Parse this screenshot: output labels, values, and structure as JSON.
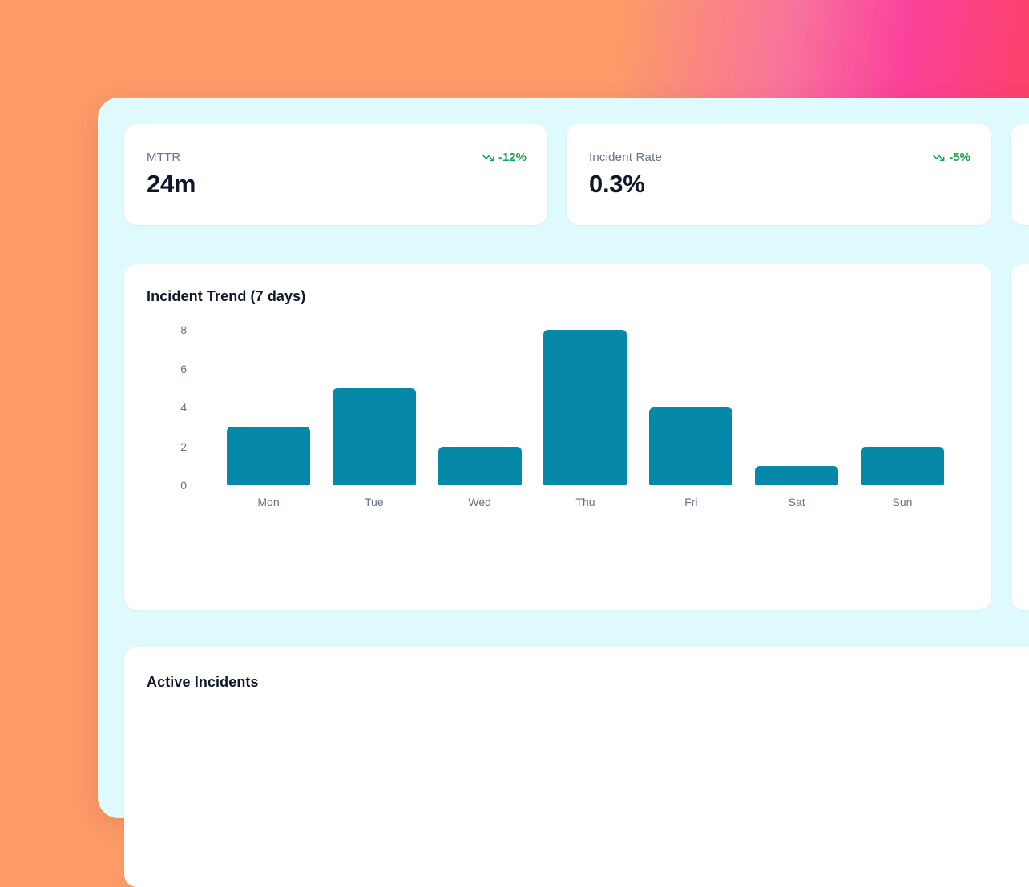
{
  "metrics": [
    {
      "label": "MTTR",
      "value": "24m",
      "trend": "-12%",
      "trend_direction": "down",
      "trend_color": "#16a34a"
    },
    {
      "label": "Incident Rate",
      "value": "0.3%",
      "trend": "-5%",
      "trend_direction": "down",
      "trend_color": "#16a34a"
    }
  ],
  "chart_data": {
    "type": "bar",
    "title": "Incident Trend (7 days)",
    "categories": [
      "Mon",
      "Tue",
      "Wed",
      "Thu",
      "Fri",
      "Sat",
      "Sun"
    ],
    "values": [
      3,
      5,
      2,
      8,
      4,
      1,
      2
    ],
    "yticks": [
      0,
      2,
      4,
      6,
      8
    ],
    "ylim": [
      0,
      8
    ],
    "xlabel": "",
    "ylabel": "",
    "grid": false,
    "legend": false,
    "bar_color": "#0689a8"
  },
  "incidents": {
    "title": "Active Incidents"
  },
  "colors": {
    "panel_bg": "#dffafd",
    "card_bg": "#ffffff",
    "bg_gradient_start": "#fc9a68",
    "bg_gradient_pink": "#fb429c",
    "bg_gradient_end": "#fb4352",
    "text_primary": "#0f172a",
    "text_secondary": "#64748b",
    "axis_text": "#667085",
    "trend_green": "#16a34a",
    "bar_teal": "#0689a8"
  }
}
